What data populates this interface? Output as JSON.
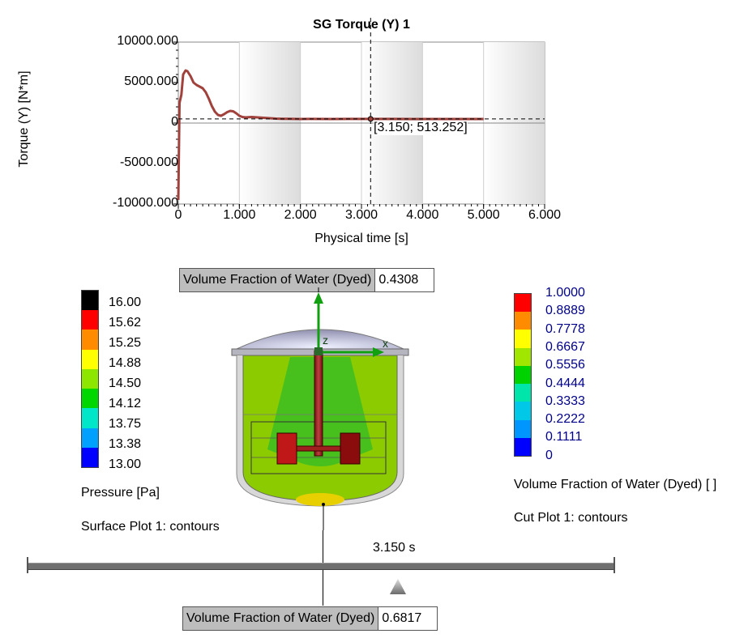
{
  "chart_data": {
    "type": "line",
    "title": "SG Torque (Y) 1",
    "xlabel": "Physical time [s]",
    "ylabel": "Torque (Y) [N*m]",
    "xlim": [
      0,
      6
    ],
    "ylim": [
      -10000,
      10000
    ],
    "x_ticks": [
      "0",
      "1.000",
      "2.000",
      "3.000",
      "4.000",
      "5.000",
      "6.000"
    ],
    "y_ticks": [
      "10000.000",
      "5000.000",
      "0",
      "-5000.000",
      "-10000.000"
    ],
    "grid": true,
    "series": [
      {
        "color": "#a0413c",
        "x": [
          0,
          0.02,
          0.05,
          0.08,
          0.12,
          0.15,
          0.2,
          0.25,
          0.3,
          0.35,
          0.4,
          0.45,
          0.5,
          0.55,
          0.6,
          0.65,
          0.7,
          0.75,
          0.8,
          0.85,
          0.9,
          0.95,
          1.0,
          1.05,
          1.1,
          1.2,
          1.3,
          1.4,
          1.5,
          1.6,
          1.7,
          1.8,
          2.0,
          2.2,
          2.5,
          2.8,
          3.15,
          3.5,
          4.0,
          4.5,
          5.0
        ],
        "y": [
          -9500,
          2500,
          3500,
          6000,
          6500,
          6400,
          5800,
          5000,
          4700,
          4500,
          4300,
          3800,
          3000,
          2100,
          1400,
          1000,
          900,
          1100,
          1350,
          1500,
          1450,
          1200,
          900,
          750,
          700,
          750,
          700,
          650,
          600,
          550,
          520,
          530,
          500,
          510,
          500,
          505,
          513.252,
          505,
          500,
          500,
          500
        ]
      }
    ],
    "cursor": {
      "x": 3.15,
      "y": 513.252,
      "label": "[3.150; 513.252]"
    }
  },
  "pressure_legend": {
    "values": [
      "16.00",
      "15.62",
      "15.25",
      "14.88",
      "14.50",
      "14.12",
      "13.75",
      "13.38",
      "13.00"
    ],
    "colors": [
      "#000000",
      "#ff0000",
      "#ff8c00",
      "#ffff00",
      "#8ce600",
      "#00d700",
      "#00e6c8",
      "#00a0ff",
      "#0000ff"
    ],
    "title": "Pressure [Pa]",
    "caption": "Surface Plot 1: contours"
  },
  "vf_legend": {
    "values": [
      "1.0000",
      "0.8889",
      "0.7778",
      "0.6667",
      "0.5556",
      "0.4444",
      "0.3333",
      "0.2222",
      "0.1111",
      "0"
    ],
    "colors": [
      "#ff0000",
      "#ff8c00",
      "#ffff00",
      "#a0e600",
      "#00d200",
      "#00e6aa",
      "#00c8e6",
      "#0096ff",
      "#0000ff"
    ],
    "title": "Volume Fraction of Water (Dyed) [ ]",
    "caption": "Cut Plot 1: contours"
  },
  "probes": {
    "top": {
      "name": "Volume Fraction of Water (Dyed)",
      "value": "0.4308"
    },
    "bottom": {
      "name": "Volume Fraction of Water (Dyed)",
      "value": "0.6817"
    }
  },
  "axes_3d": {
    "z": "z",
    "x": "x"
  },
  "timeline": {
    "label": "3.150 s",
    "progress": 0.63
  }
}
